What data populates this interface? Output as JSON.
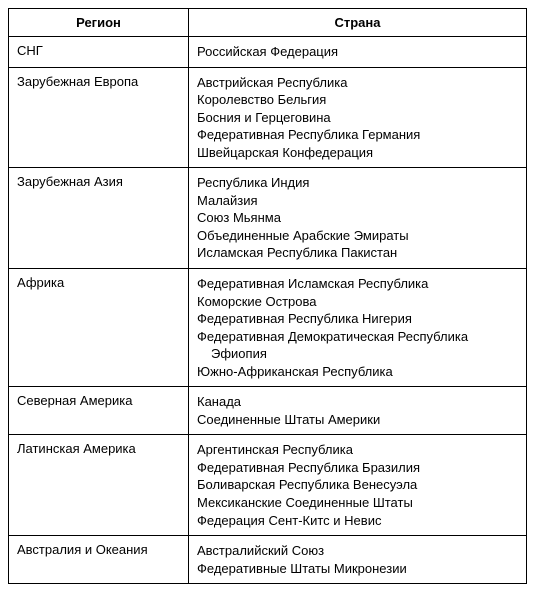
{
  "headers": {
    "region": "Регион",
    "country": "Страна"
  },
  "rows": [
    {
      "region": "СНГ",
      "countries": [
        "Российская Федерация"
      ]
    },
    {
      "region": "Зарубежная Европа",
      "countries": [
        "Австрийская Республика",
        "Королевство Бельгия",
        "Босния и Герцеговина",
        "Федеративная Республика Германия",
        "Швейцарская Конфедерация"
      ]
    },
    {
      "region": "Зарубежная Азия",
      "countries": [
        "Республика Индия",
        "Малайзия",
        "Союз Мьянма",
        "Объединенные Арабские Эмираты",
        "Исламская Республика Пакистан"
      ]
    },
    {
      "region": "Африка",
      "countries": [
        "Федеративная Исламская Республика",
        "Коморские Острова",
        "Федеративная Республика Нигерия",
        "Федеративная Демократическая Республика",
        {
          "text": "Эфиопия",
          "indent": true
        },
        "Южно-Африканская Республика"
      ]
    },
    {
      "region": "Северная Америка",
      "countries": [
        "Канада",
        "Соединенные Штаты Америки"
      ]
    },
    {
      "region": "Латинская Америка",
      "countries": [
        "Аргентинская Республика",
        "Федеративная Республика Бразилия",
        "Боливарская Республика Венесуэла",
        "Мексиканские Соединенные Штаты",
        "Федерация Сент-Китс и Невис"
      ]
    },
    {
      "region": "Австралия и Океания",
      "countries": [
        "Австралийский Союз",
        "Федеративные Штаты Микронезии"
      ]
    }
  ]
}
